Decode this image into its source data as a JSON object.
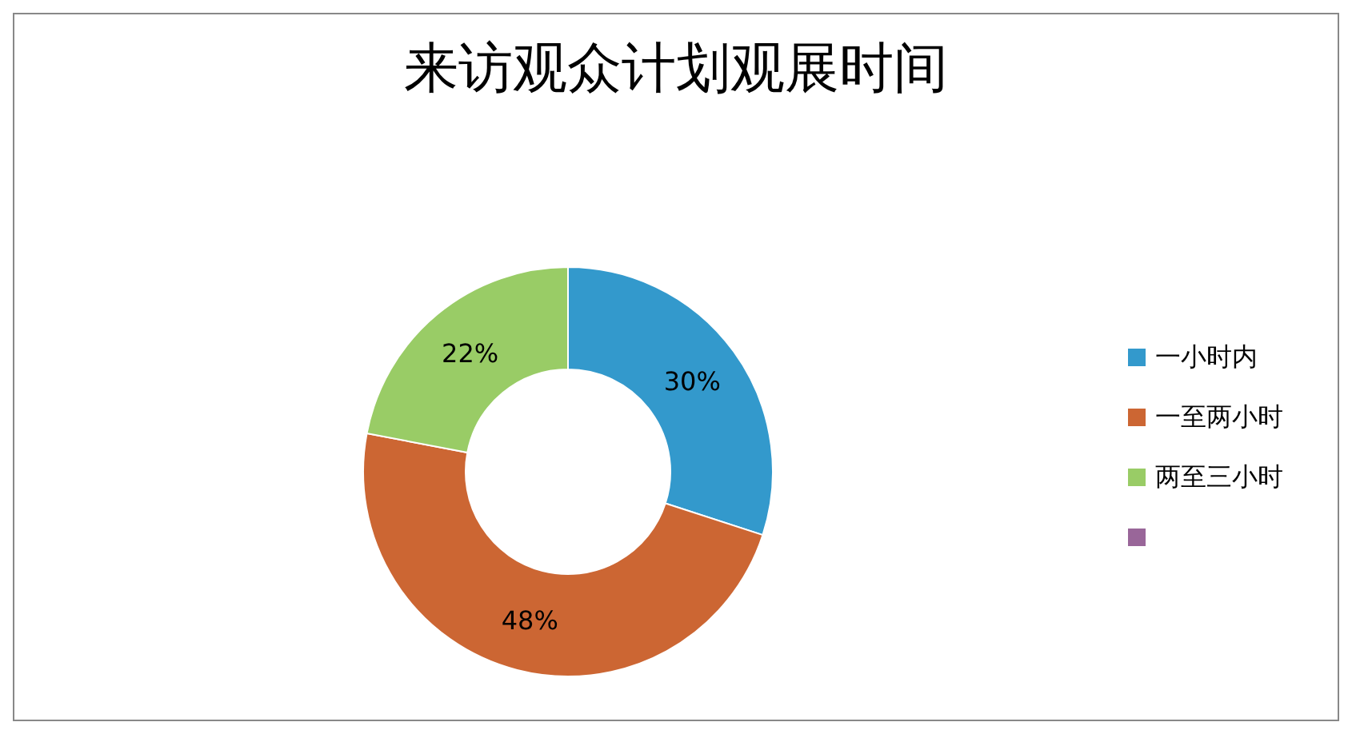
{
  "chart_data": {
    "type": "donut",
    "title": "来访观众计划观展时间",
    "categories": [
      "一小时内",
      "一至两小时",
      "两至三小时",
      null
    ],
    "values": [
      30,
      48,
      22,
      0
    ],
    "colors": [
      "#3399cc",
      "#cc6633",
      "#99cc66",
      "#996699"
    ],
    "value_labels": [
      "30%",
      "48%",
      "22%",
      null
    ],
    "legend": "right"
  }
}
